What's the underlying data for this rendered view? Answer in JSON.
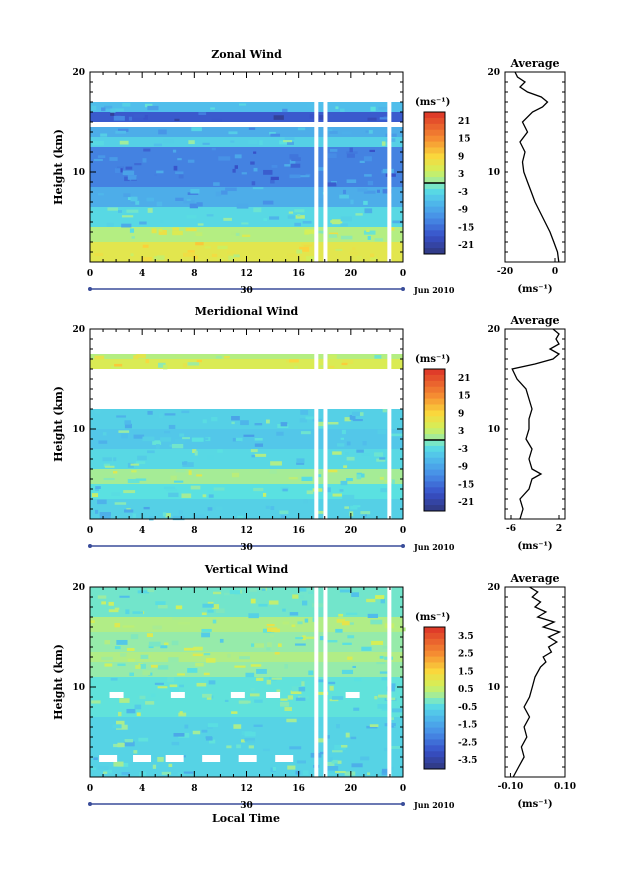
{
  "figure": {
    "bottom_xlabel": "Local Time"
  },
  "chart_data": [
    {
      "type": "heatmap",
      "title": "Zonal Wind",
      "ylabel": "Height (km)",
      "ylim": [
        1,
        20
      ],
      "yticks": [
        10,
        20
      ],
      "xlim": [
        0,
        24
      ],
      "xticks": [
        "0",
        "4",
        "8",
        "12",
        "16",
        "20",
        "0"
      ],
      "date_axis": {
        "day_label": "30",
        "month_label": "Jun 2010"
      },
      "colorbar": {
        "unit": "(ms⁻¹)",
        "range": [
          -24,
          24
        ],
        "ticks": [
          "21",
          "15",
          "9",
          "3",
          "-3",
          "-9",
          "-15",
          "-21"
        ],
        "zero_line": 0
      },
      "bands": [
        {
          "h0": 1,
          "h1": 3,
          "value": 6
        },
        {
          "h0": 3,
          "h1": 4.5,
          "value": 2
        },
        {
          "h0": 4.5,
          "h1": 6.5,
          "value": -3
        },
        {
          "h0": 6.5,
          "h1": 8.5,
          "value": -8
        },
        {
          "h0": 8.5,
          "h1": 12.5,
          "value": -13
        },
        {
          "h0": 12.5,
          "h1": 13.5,
          "value": -4
        },
        {
          "h0": 13.5,
          "h1": 14.5,
          "value": -8
        },
        {
          "h0": 15,
          "h1": 16,
          "value": -17
        },
        {
          "h0": 16,
          "h1": 17,
          "value": -6
        }
      ],
      "avg": {
        "title": "Average",
        "xlabel": "(ms⁻¹)",
        "xlim": [
          -20,
          4
        ],
        "xticks": [
          "-20",
          "0"
        ],
        "yticks": [
          10,
          20
        ],
        "profile": [
          [
            1.0,
            1.5
          ],
          [
            2.0,
            1.0
          ],
          [
            3.0,
            -0.5
          ],
          [
            4.0,
            -2.0
          ],
          [
            5.0,
            -4.0
          ],
          [
            6.0,
            -6.0
          ],
          [
            7.0,
            -8.0
          ],
          [
            8.0,
            -9.5
          ],
          [
            9.0,
            -11.0
          ],
          [
            10.0,
            -12.5
          ],
          [
            11.0,
            -13.0
          ],
          [
            12.0,
            -12.0
          ],
          [
            13.0,
            -14.0
          ],
          [
            14.0,
            -11.0
          ],
          [
            15.0,
            -13.0
          ],
          [
            16.0,
            -9.0
          ],
          [
            16.5,
            -5.0
          ],
          [
            17.0,
            -3.0
          ],
          [
            17.5,
            -5.5
          ],
          [
            18.0,
            -11.0
          ],
          [
            18.5,
            -14.0
          ],
          [
            19.0,
            -12.0
          ],
          [
            19.5,
            -15.0
          ],
          [
            20.0,
            -16.0
          ]
        ]
      }
    },
    {
      "type": "heatmap",
      "title": "Meridional Wind",
      "ylabel": "Height (km)",
      "ylim": [
        1,
        20
      ],
      "yticks": [
        10,
        20
      ],
      "xlim": [
        0,
        24
      ],
      "xticks": [
        "0",
        "4",
        "8",
        "12",
        "16",
        "20",
        "0"
      ],
      "date_axis": {
        "day_label": "30",
        "month_label": "Jun 2010"
      },
      "colorbar": {
        "unit": "(ms⁻¹)",
        "range": [
          -24,
          24
        ],
        "ticks": [
          "21",
          "15",
          "9",
          "3",
          "-3",
          "-9",
          "-15",
          "-21"
        ],
        "zero_line": 0
      },
      "bands": [
        {
          "h0": 1,
          "h1": 3,
          "value": -4
        },
        {
          "h0": 3,
          "h1": 4.5,
          "value": -2
        },
        {
          "h0": 4.5,
          "h1": 6,
          "value": 1
        },
        {
          "h0": 6,
          "h1": 8,
          "value": -3
        },
        {
          "h0": 8,
          "h1": 10,
          "value": -5
        },
        {
          "h0": 10,
          "h1": 12,
          "value": -4
        },
        {
          "h0": 16,
          "h1": 17,
          "value": 5
        },
        {
          "h0": 17,
          "h1": 17.5,
          "value": 2
        }
      ],
      "avg": {
        "title": "Average",
        "xlabel": "(ms⁻¹)",
        "xlim": [
          -7,
          3
        ],
        "xticks": [
          "-6",
          "2"
        ],
        "yticks": [
          10,
          20
        ],
        "profile": [
          [
            1.0,
            -4.5
          ],
          [
            2.0,
            -4.0
          ],
          [
            3.0,
            -4.5
          ],
          [
            4.0,
            -3.0
          ],
          [
            5.0,
            -2.5
          ],
          [
            5.5,
            -1.0
          ],
          [
            6.0,
            -2.5
          ],
          [
            7.0,
            -3.0
          ],
          [
            8.0,
            -2.5
          ],
          [
            9.0,
            -3.5
          ],
          [
            10.0,
            -3.0
          ],
          [
            11.0,
            -3.0
          ],
          [
            12.0,
            -2.5
          ],
          [
            13.0,
            -3.0
          ],
          [
            14.0,
            -3.5
          ],
          [
            15.0,
            -5.0
          ],
          [
            16.0,
            -5.8
          ],
          [
            16.5,
            -2.0
          ],
          [
            17.0,
            1.0
          ],
          [
            17.5,
            2.0
          ],
          [
            18.0,
            0.5
          ],
          [
            18.5,
            2.0
          ],
          [
            19.0,
            1.5
          ],
          [
            19.5,
            2.0
          ],
          [
            20.0,
            1.0
          ]
        ]
      }
    },
    {
      "type": "heatmap",
      "title": "Vertical Wind",
      "ylabel": "Height (km)",
      "ylim": [
        1,
        20
      ],
      "yticks": [
        10,
        20
      ],
      "xlim": [
        0,
        24
      ],
      "xticks": [
        "0",
        "4",
        "8",
        "12",
        "16",
        "20",
        "0"
      ],
      "date_axis": {
        "day_label": "30",
        "month_label": "Jun 2010"
      },
      "colorbar": {
        "unit": "(ms⁻¹)",
        "range": [
          -4,
          4
        ],
        "ticks": [
          "3.5",
          "2.5",
          "1.5",
          "0.5",
          "-0.5",
          "-1.5",
          "-2.5",
          "-3.5"
        ]
      },
      "bands": [
        {
          "h0": 1,
          "h1": 7,
          "value": -0.6
        },
        {
          "h0": 7,
          "h1": 11,
          "value": -0.3
        },
        {
          "h0": 11,
          "h1": 12.5,
          "value": 0.0
        },
        {
          "h0": 12.5,
          "h1": 13.5,
          "value": 0.3
        },
        {
          "h0": 13.5,
          "h1": 15.5,
          "value": 0.0
        },
        {
          "h0": 15.5,
          "h1": 17,
          "value": 0.3
        },
        {
          "h0": 17,
          "h1": 20,
          "value": -0.2
        }
      ],
      "avg": {
        "title": "Average",
        "xlabel": "(ms⁻¹)",
        "xlim": [
          -0.12,
          0.1
        ],
        "xticks": [
          "-0.10",
          "0.10"
        ],
        "yticks": [
          10,
          20
        ],
        "profile": [
          [
            1.0,
            -0.09
          ],
          [
            2.0,
            -0.07
          ],
          [
            3.0,
            -0.05
          ],
          [
            4.0,
            -0.06
          ],
          [
            5.0,
            -0.04
          ],
          [
            6.0,
            -0.05
          ],
          [
            7.0,
            -0.03
          ],
          [
            8.0,
            -0.05
          ],
          [
            9.0,
            -0.03
          ],
          [
            10.0,
            -0.02
          ],
          [
            11.0,
            -0.01
          ],
          [
            12.0,
            0.01
          ],
          [
            12.5,
            0.03
          ],
          [
            13.0,
            0.02
          ],
          [
            13.5,
            0.05
          ],
          [
            14.0,
            0.04
          ],
          [
            14.5,
            0.07
          ],
          [
            15.0,
            0.04
          ],
          [
            15.5,
            0.08
          ],
          [
            16.0,
            0.02
          ],
          [
            16.5,
            0.06
          ],
          [
            17.0,
            0.0
          ],
          [
            17.5,
            0.03
          ],
          [
            18.0,
            -0.01
          ],
          [
            18.5,
            0.01
          ],
          [
            19.0,
            -0.02
          ],
          [
            19.5,
            0.0
          ],
          [
            20.0,
            -0.03
          ]
        ]
      }
    }
  ]
}
